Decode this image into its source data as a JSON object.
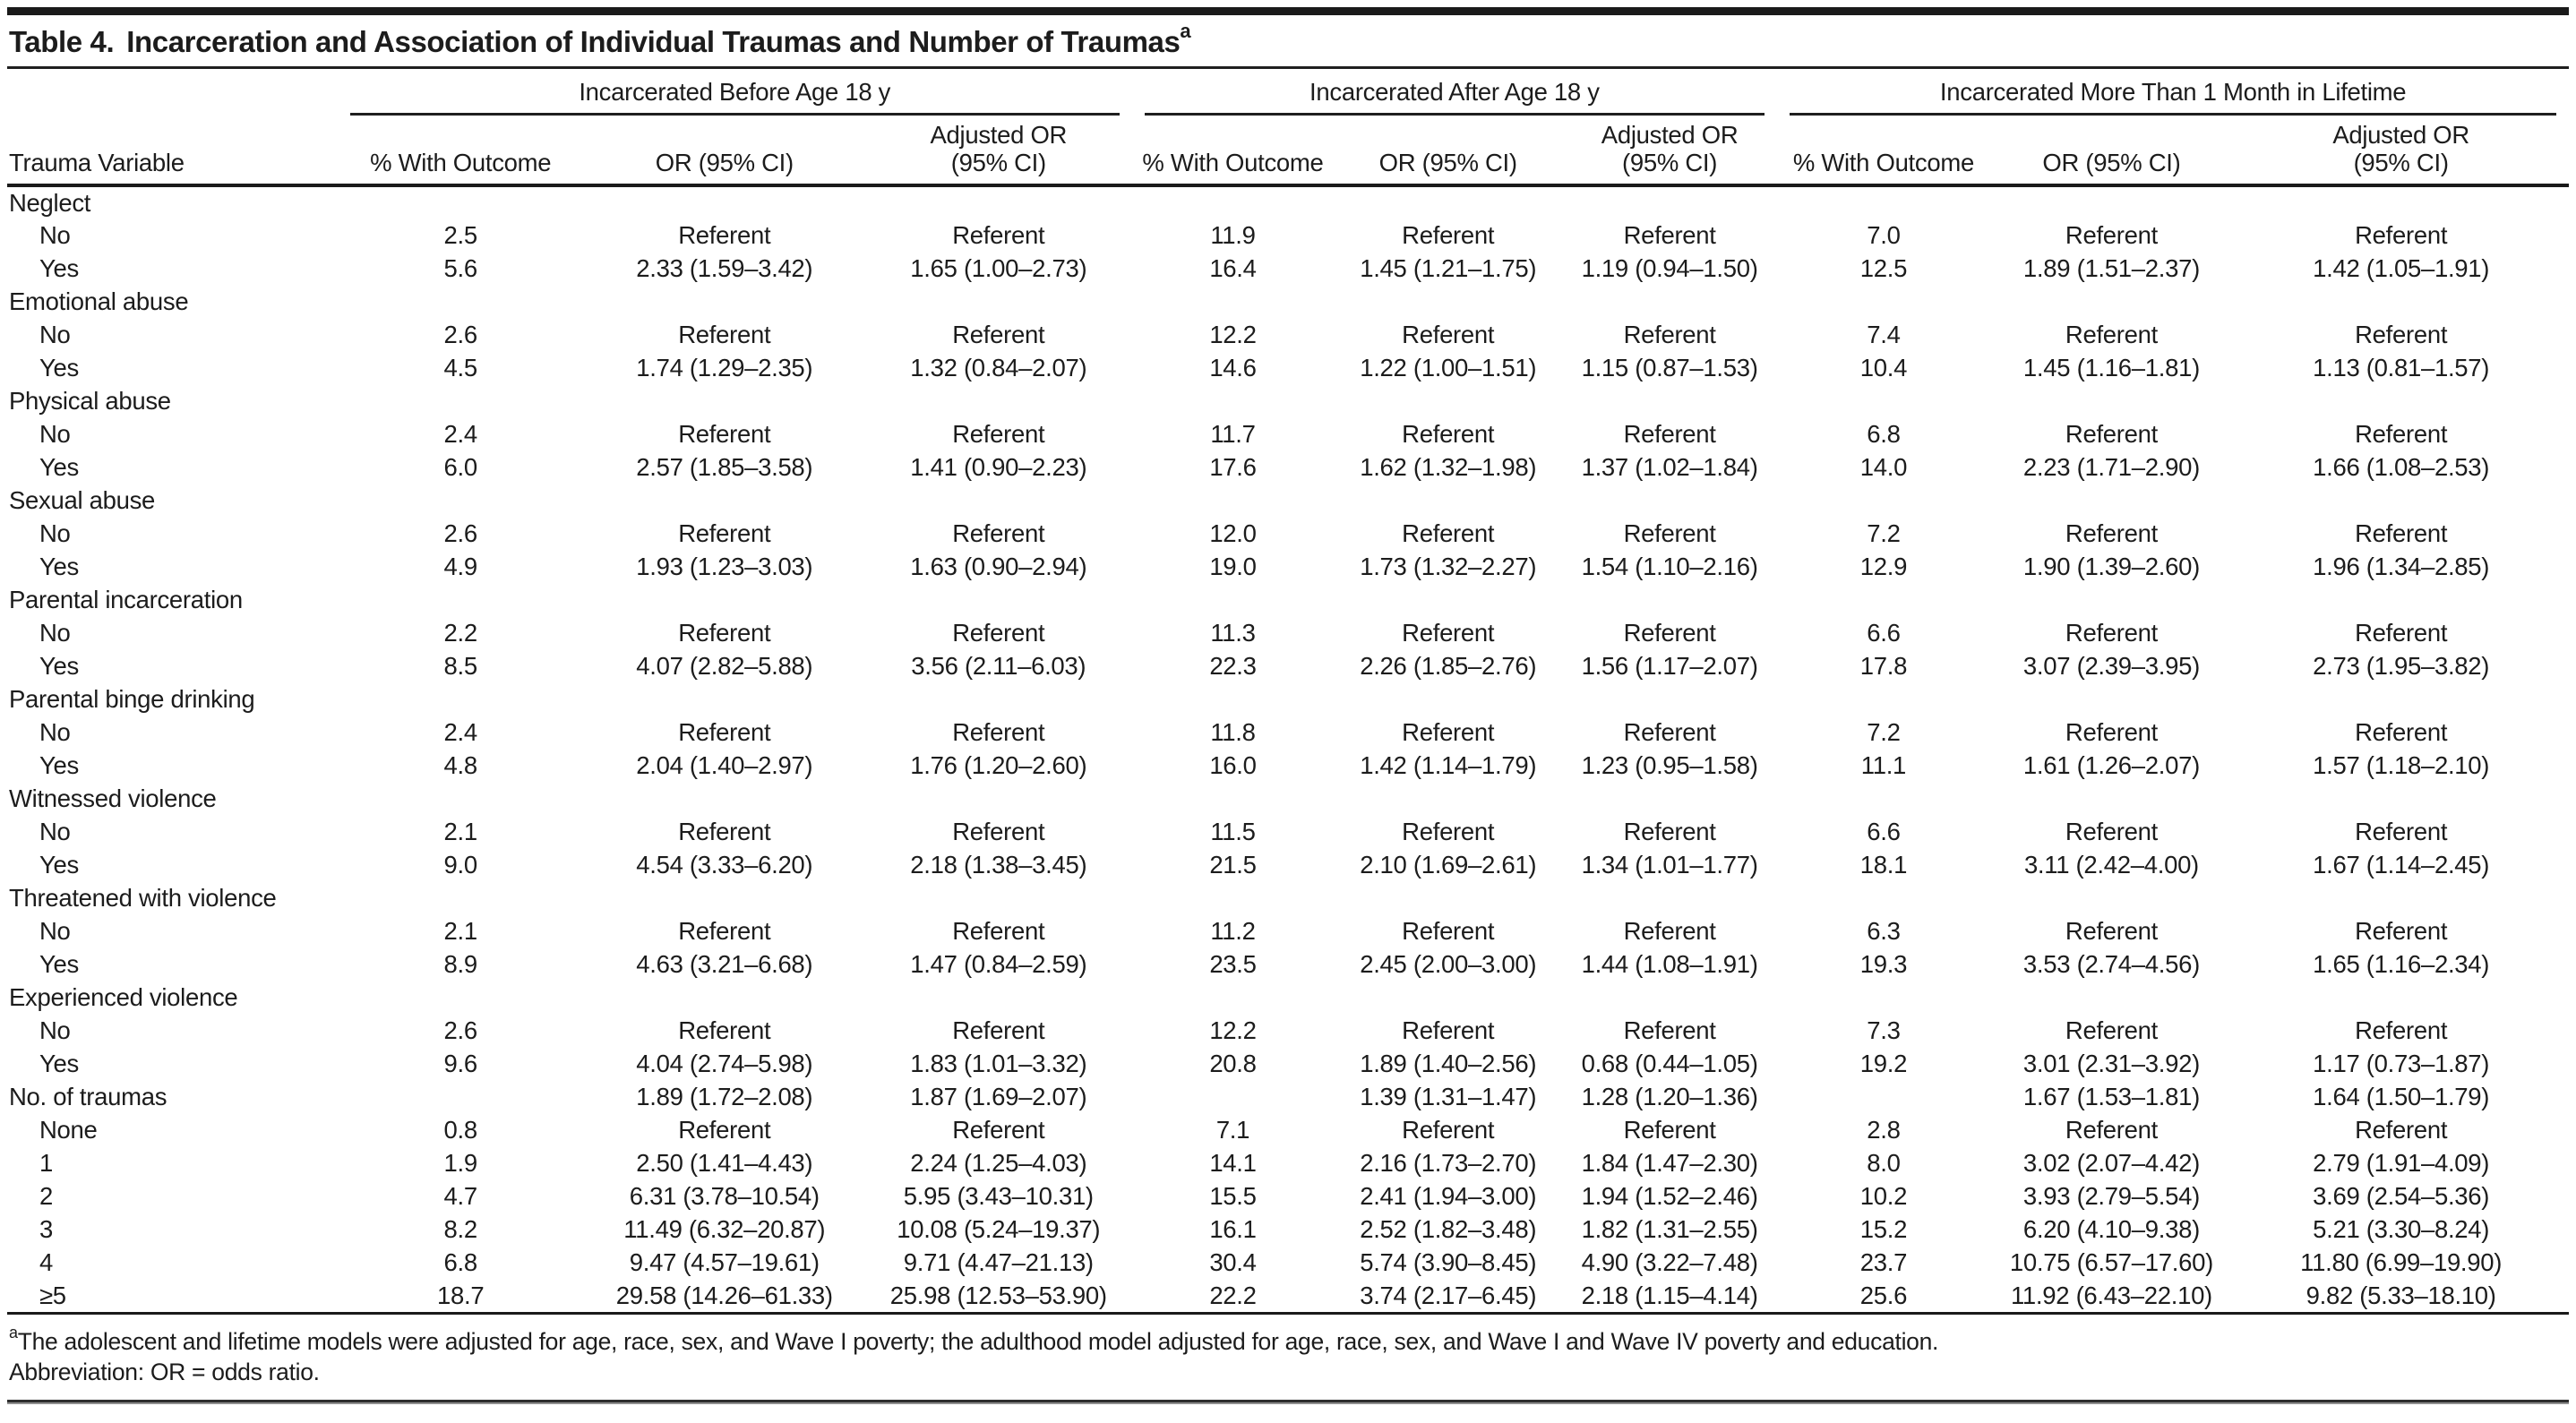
{
  "table": {
    "title": {
      "label": "Table 4.",
      "text": "Incarceration and Association of Individual Traumas and Number of Traumas",
      "superscript": "a"
    },
    "stub_header": "Trauma Variable",
    "groups": [
      {
        "label": "Incarcerated Before Age 18 y"
      },
      {
        "label": "Incarcerated After Age 18 y"
      },
      {
        "label": "Incarcerated More Than 1 Month in Lifetime"
      }
    ],
    "sub_headers": [
      "% With Outcome",
      "OR (95% CI)",
      "Adjusted OR (95% CI)"
    ],
    "rows": [
      {
        "label": "Neglect",
        "indent": false,
        "cells": [
          "",
          "",
          "",
          "",
          "",
          "",
          "",
          "",
          ""
        ]
      },
      {
        "label": "No",
        "indent": true,
        "cells": [
          "2.5",
          "Referent",
          "Referent",
          "11.9",
          "Referent",
          "Referent",
          "7.0",
          "Referent",
          "Referent"
        ]
      },
      {
        "label": "Yes",
        "indent": true,
        "cells": [
          "5.6",
          "2.33 (1.59–3.42)",
          "1.65 (1.00–2.73)",
          "16.4",
          "1.45 (1.21–1.75)",
          "1.19 (0.94–1.50)",
          "12.5",
          "1.89 (1.51–2.37)",
          "1.42 (1.05–1.91)"
        ]
      },
      {
        "label": "Emotional abuse",
        "indent": false,
        "cells": [
          "",
          "",
          "",
          "",
          "",
          "",
          "",
          "",
          ""
        ]
      },
      {
        "label": "No",
        "indent": true,
        "cells": [
          "2.6",
          "Referent",
          "Referent",
          "12.2",
          "Referent",
          "Referent",
          "7.4",
          "Referent",
          "Referent"
        ]
      },
      {
        "label": "Yes",
        "indent": true,
        "cells": [
          "4.5",
          "1.74 (1.29–2.35)",
          "1.32 (0.84–2.07)",
          "14.6",
          "1.22 (1.00–1.51)",
          "1.15 (0.87–1.53)",
          "10.4",
          "1.45 (1.16–1.81)",
          "1.13 (0.81–1.57)"
        ]
      },
      {
        "label": "Physical abuse",
        "indent": false,
        "cells": [
          "",
          "",
          "",
          "",
          "",
          "",
          "",
          "",
          ""
        ]
      },
      {
        "label": "No",
        "indent": true,
        "cells": [
          "2.4",
          "Referent",
          "Referent",
          "11.7",
          "Referent",
          "Referent",
          "6.8",
          "Referent",
          "Referent"
        ]
      },
      {
        "label": "Yes",
        "indent": true,
        "cells": [
          "6.0",
          "2.57 (1.85–3.58)",
          "1.41 (0.90–2.23)",
          "17.6",
          "1.62 (1.32–1.98)",
          "1.37 (1.02–1.84)",
          "14.0",
          "2.23 (1.71–2.90)",
          "1.66 (1.08–2.53)"
        ]
      },
      {
        "label": "Sexual abuse",
        "indent": false,
        "cells": [
          "",
          "",
          "",
          "",
          "",
          "",
          "",
          "",
          ""
        ]
      },
      {
        "label": "No",
        "indent": true,
        "cells": [
          "2.6",
          "Referent",
          "Referent",
          "12.0",
          "Referent",
          "Referent",
          "7.2",
          "Referent",
          "Referent"
        ]
      },
      {
        "label": "Yes",
        "indent": true,
        "cells": [
          "4.9",
          "1.93 (1.23–3.03)",
          "1.63 (0.90–2.94)",
          "19.0",
          "1.73 (1.32–2.27)",
          "1.54 (1.10–2.16)",
          "12.9",
          "1.90 (1.39–2.60)",
          "1.96 (1.34–2.85)"
        ]
      },
      {
        "label": "Parental incarceration",
        "indent": false,
        "cells": [
          "",
          "",
          "",
          "",
          "",
          "",
          "",
          "",
          ""
        ]
      },
      {
        "label": "No",
        "indent": true,
        "cells": [
          "2.2",
          "Referent",
          "Referent",
          "11.3",
          "Referent",
          "Referent",
          "6.6",
          "Referent",
          "Referent"
        ]
      },
      {
        "label": "Yes",
        "indent": true,
        "cells": [
          "8.5",
          "4.07 (2.82–5.88)",
          "3.56 (2.11–6.03)",
          "22.3",
          "2.26 (1.85–2.76)",
          "1.56 (1.17–2.07)",
          "17.8",
          "3.07 (2.39–3.95)",
          "2.73 (1.95–3.82)"
        ]
      },
      {
        "label": "Parental binge drinking",
        "indent": false,
        "cells": [
          "",
          "",
          "",
          "",
          "",
          "",
          "",
          "",
          ""
        ]
      },
      {
        "label": "No",
        "indent": true,
        "cells": [
          "2.4",
          "Referent",
          "Referent",
          "11.8",
          "Referent",
          "Referent",
          "7.2",
          "Referent",
          "Referent"
        ]
      },
      {
        "label": "Yes",
        "indent": true,
        "cells": [
          "4.8",
          "2.04 (1.40–2.97)",
          "1.76 (1.20–2.60)",
          "16.0",
          "1.42 (1.14–1.79)",
          "1.23 (0.95–1.58)",
          "11.1",
          "1.61 (1.26–2.07)",
          "1.57 (1.18–2.10)"
        ]
      },
      {
        "label": "Witnessed violence",
        "indent": false,
        "cells": [
          "",
          "",
          "",
          "",
          "",
          "",
          "",
          "",
          ""
        ]
      },
      {
        "label": "No",
        "indent": true,
        "cells": [
          "2.1",
          "Referent",
          "Referent",
          "11.5",
          "Referent",
          "Referent",
          "6.6",
          "Referent",
          "Referent"
        ]
      },
      {
        "label": "Yes",
        "indent": true,
        "cells": [
          "9.0",
          "4.54 (3.33–6.20)",
          "2.18 (1.38–3.45)",
          "21.5",
          "2.10 (1.69–2.61)",
          "1.34 (1.01–1.77)",
          "18.1",
          "3.11 (2.42–4.00)",
          "1.67 (1.14–2.45)"
        ]
      },
      {
        "label": "Threatened with violence",
        "indent": false,
        "cells": [
          "",
          "",
          "",
          "",
          "",
          "",
          "",
          "",
          ""
        ]
      },
      {
        "label": "No",
        "indent": true,
        "cells": [
          "2.1",
          "Referent",
          "Referent",
          "11.2",
          "Referent",
          "Referent",
          "6.3",
          "Referent",
          "Referent"
        ]
      },
      {
        "label": "Yes",
        "indent": true,
        "cells": [
          "8.9",
          "4.63 (3.21–6.68)",
          "1.47 (0.84–2.59)",
          "23.5",
          "2.45 (2.00–3.00)",
          "1.44 (1.08–1.91)",
          "19.3",
          "3.53 (2.74–4.56)",
          "1.65 (1.16–2.34)"
        ]
      },
      {
        "label": "Experienced violence",
        "indent": false,
        "cells": [
          "",
          "",
          "",
          "",
          "",
          "",
          "",
          "",
          ""
        ]
      },
      {
        "label": "No",
        "indent": true,
        "cells": [
          "2.6",
          "Referent",
          "Referent",
          "12.2",
          "Referent",
          "Referent",
          "7.3",
          "Referent",
          "Referent"
        ]
      },
      {
        "label": "Yes",
        "indent": true,
        "cells": [
          "9.6",
          "4.04 (2.74–5.98)",
          "1.83 (1.01–3.32)",
          "20.8",
          "1.89 (1.40–2.56)",
          "0.68 (0.44–1.05)",
          "19.2",
          "3.01 (2.31–3.92)",
          "1.17 (0.73–1.87)"
        ]
      },
      {
        "label": "No. of traumas",
        "indent": false,
        "cells": [
          "",
          "1.89 (1.72–2.08)",
          "1.87 (1.69–2.07)",
          "",
          "1.39 (1.31–1.47)",
          "1.28 (1.20–1.36)",
          "",
          "1.67 (1.53–1.81)",
          "1.64 (1.50–1.79)"
        ]
      },
      {
        "label": "None",
        "indent": true,
        "cells": [
          "0.8",
          "Referent",
          "Referent",
          "7.1",
          "Referent",
          "Referent",
          "2.8",
          "Referent",
          "Referent"
        ]
      },
      {
        "label": "1",
        "indent": true,
        "cells": [
          "1.9",
          "2.50 (1.41–4.43)",
          "2.24 (1.25–4.03)",
          "14.1",
          "2.16 (1.73–2.70)",
          "1.84 (1.47–2.30)",
          "8.0",
          "3.02 (2.07–4.42)",
          "2.79 (1.91–4.09)"
        ]
      },
      {
        "label": "2",
        "indent": true,
        "cells": [
          "4.7",
          "6.31 (3.78–10.54)",
          "5.95 (3.43–10.31)",
          "15.5",
          "2.41 (1.94–3.00)",
          "1.94 (1.52–2.46)",
          "10.2",
          "3.93 (2.79–5.54)",
          "3.69 (2.54–5.36)"
        ]
      },
      {
        "label": "3",
        "indent": true,
        "cells": [
          "8.2",
          "11.49 (6.32–20.87)",
          "10.08 (5.24–19.37)",
          "16.1",
          "2.52 (1.82–3.48)",
          "1.82 (1.31–2.55)",
          "15.2",
          "6.20 (4.10–9.38)",
          "5.21 (3.30–8.24)"
        ]
      },
      {
        "label": "4",
        "indent": true,
        "cells": [
          "6.8",
          "9.47 (4.57–19.61)",
          "9.71 (4.47–21.13)",
          "30.4",
          "5.74 (3.90–8.45)",
          "4.90 (3.22–7.48)",
          "23.7",
          "10.75 (6.57–17.60)",
          "11.80 (6.99–19.90)"
        ]
      },
      {
        "label": "≥5",
        "indent": true,
        "cells": [
          "18.7",
          "29.58 (14.26–61.33)",
          "25.98 (12.53–53.90)",
          "22.2",
          "3.74 (2.17–6.45)",
          "2.18 (1.15–4.14)",
          "25.6",
          "11.92 (6.43–22.10)",
          "9.82 (5.33–18.10)"
        ]
      }
    ],
    "footnotes": [
      {
        "marker": "a",
        "text": "The adolescent and lifetime models were adjusted for age, race, sex, and Wave I poverty; the adulthood model adjusted for age, race, sex, and Wave I and Wave IV poverty and education."
      },
      {
        "marker": "",
        "text": "Abbreviation: OR = odds ratio."
      }
    ]
  }
}
